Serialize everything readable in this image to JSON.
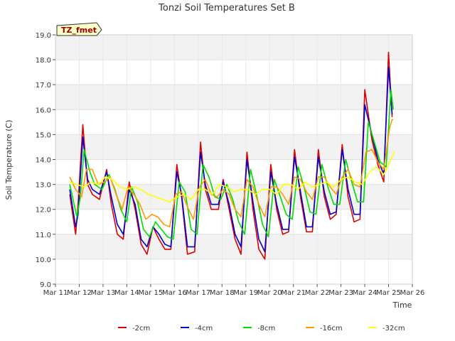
{
  "chart_data": {
    "type": "line",
    "title": "Tonzi Soil Temperatures Set B",
    "xlabel": "Time",
    "ylabel": "Soil Temperature (C)",
    "annotation": "TZ_fmet",
    "xlim": [
      11,
      26
    ],
    "ylim": [
      9.0,
      19.0
    ],
    "x_ticks": [
      11,
      12,
      13,
      14,
      15,
      16,
      17,
      18,
      19,
      20,
      21,
      22,
      23,
      24,
      25,
      26
    ],
    "x_tick_labels": [
      "Mar 11",
      "Mar 12",
      "Mar 13",
      "Mar 14",
      "Mar 15",
      "Mar 16",
      "Mar 17",
      "Mar 18",
      "Mar 19",
      "Mar 20",
      "Mar 21",
      "Mar 22",
      "Mar 23",
      "Mar 24",
      "Mar 25",
      "Mar 26"
    ],
    "y_ticks": [
      9,
      10,
      11,
      12,
      13,
      14,
      15,
      16,
      17,
      18,
      19
    ],
    "y_tick_labels": [
      "9.0",
      "10.0",
      "11.0",
      "12.0",
      "13.0",
      "14.0",
      "15.0",
      "16.0",
      "17.0",
      "18.0",
      "19.0"
    ],
    "grid": true,
    "legend_position": "bottom",
    "series": [
      {
        "name": "-2cm",
        "color": "#dd0000",
        "x": [
          11.6,
          11.85,
          11.95,
          12.15,
          12.35,
          12.55,
          12.85,
          13.15,
          13.35,
          13.6,
          13.85,
          14.1,
          14.35,
          14.6,
          14.85,
          15.1,
          15.35,
          15.6,
          15.85,
          16.1,
          16.3,
          16.55,
          16.85,
          17.1,
          17.3,
          17.55,
          17.85,
          18.05,
          18.3,
          18.55,
          18.8,
          19.05,
          19.3,
          19.55,
          19.8,
          20.05,
          20.3,
          20.55,
          20.8,
          21.05,
          21.3,
          21.55,
          21.8,
          22.05,
          22.3,
          22.55,
          22.8,
          23.05,
          23.3,
          23.55,
          23.8,
          24.0,
          24.3,
          24.55,
          24.8,
          25.0,
          25.15
        ],
        "y": [
          12.6,
          11.0,
          12.2,
          15.4,
          13.0,
          12.6,
          12.4,
          13.6,
          12.2,
          11.0,
          10.8,
          13.1,
          12.0,
          10.6,
          10.2,
          11.3,
          10.8,
          10.4,
          10.4,
          13.8,
          12.5,
          10.2,
          10.3,
          14.7,
          12.8,
          12.0,
          12.0,
          13.2,
          12.0,
          10.8,
          10.2,
          14.3,
          12.0,
          10.4,
          10.0,
          13.8,
          12.0,
          11.0,
          11.1,
          14.4,
          12.5,
          11.1,
          11.1,
          14.4,
          12.5,
          11.6,
          11.8,
          14.6,
          12.5,
          11.5,
          11.6,
          16.8,
          14.8,
          13.8,
          13.1,
          18.3,
          15.7
        ]
      },
      {
        "name": "-4cm",
        "color": "#0000cc",
        "x": [
          11.6,
          11.85,
          11.95,
          12.15,
          12.35,
          12.55,
          12.85,
          13.15,
          13.35,
          13.6,
          13.85,
          14.1,
          14.35,
          14.6,
          14.85,
          15.1,
          15.35,
          15.6,
          15.85,
          16.1,
          16.3,
          16.55,
          16.85,
          17.1,
          17.3,
          17.55,
          17.85,
          18.05,
          18.3,
          18.55,
          18.8,
          19.05,
          19.3,
          19.55,
          19.8,
          20.05,
          20.3,
          20.55,
          20.8,
          21.05,
          21.3,
          21.55,
          21.8,
          22.05,
          22.3,
          22.55,
          22.8,
          23.05,
          23.3,
          23.55,
          23.8,
          24.0,
          24.3,
          24.55,
          24.8,
          25.0,
          25.15
        ],
        "y": [
          12.8,
          11.3,
          11.8,
          14.9,
          13.2,
          12.8,
          12.6,
          13.5,
          12.5,
          11.4,
          11.0,
          12.8,
          12.2,
          10.8,
          10.5,
          11.3,
          11.0,
          10.6,
          10.5,
          13.5,
          12.6,
          10.5,
          10.5,
          14.3,
          13.0,
          12.2,
          12.2,
          13.1,
          12.2,
          11.0,
          10.5,
          14.0,
          12.3,
          10.8,
          10.3,
          13.5,
          12.2,
          11.2,
          11.2,
          14.1,
          12.7,
          11.3,
          11.3,
          14.1,
          12.7,
          11.8,
          11.9,
          14.4,
          12.8,
          11.8,
          11.8,
          16.2,
          15.0,
          14.0,
          13.4,
          17.7,
          15.8
        ]
      },
      {
        "name": "-8cm",
        "color": "#00dd00",
        "x": [
          11.6,
          11.9,
          12.05,
          12.2,
          12.45,
          12.65,
          12.95,
          13.25,
          13.5,
          13.75,
          14.0,
          14.2,
          14.45,
          14.7,
          14.95,
          15.2,
          15.45,
          15.7,
          15.95,
          16.2,
          16.45,
          16.7,
          16.95,
          17.2,
          17.45,
          17.7,
          17.95,
          18.2,
          18.45,
          18.7,
          18.95,
          19.2,
          19.45,
          19.7,
          19.95,
          20.2,
          20.45,
          20.7,
          20.95,
          21.2,
          21.45,
          21.7,
          21.95,
          22.2,
          22.45,
          22.7,
          22.95,
          23.2,
          23.45,
          23.7,
          23.95,
          24.15,
          24.4,
          24.65,
          24.9,
          25.1,
          25.2
        ],
        "y": [
          13.0,
          11.7,
          12.5,
          14.4,
          13.5,
          13.0,
          12.8,
          13.4,
          12.8,
          12.0,
          11.5,
          12.9,
          12.3,
          11.2,
          10.9,
          11.5,
          11.2,
          10.9,
          10.8,
          13.1,
          12.7,
          11.2,
          11.0,
          13.8,
          13.3,
          12.5,
          12.4,
          13.0,
          12.4,
          11.5,
          11.0,
          13.6,
          12.6,
          11.4,
          10.9,
          13.2,
          12.5,
          11.8,
          11.6,
          13.7,
          12.9,
          11.9,
          11.8,
          13.8,
          12.9,
          12.2,
          12.2,
          14.0,
          13.1,
          12.3,
          12.3,
          15.5,
          14.7,
          13.9,
          13.7,
          16.8,
          16.0
        ]
      },
      {
        "name": "-16cm",
        "color": "#ff9900",
        "x": [
          11.6,
          11.85,
          12.1,
          12.3,
          12.55,
          12.8,
          13.05,
          13.3,
          13.55,
          13.8,
          14.05,
          14.3,
          14.55,
          14.8,
          15.05,
          15.3,
          15.55,
          15.8,
          16.05,
          16.3,
          16.55,
          16.8,
          17.05,
          17.3,
          17.55,
          17.8,
          18.05,
          18.3,
          18.55,
          18.8,
          19.05,
          19.3,
          19.55,
          19.8,
          20.05,
          20.3,
          20.55,
          20.8,
          21.05,
          21.3,
          21.55,
          21.8,
          22.05,
          22.3,
          22.55,
          22.8,
          23.05,
          23.3,
          23.55,
          23.8,
          24.05,
          24.3,
          24.55,
          24.8,
          25.05,
          25.15,
          25.2
        ],
        "y": [
          13.3,
          12.8,
          12.5,
          13.6,
          13.6,
          13.0,
          13.1,
          13.3,
          12.6,
          12.0,
          12.9,
          12.6,
          12.2,
          11.6,
          11.8,
          11.7,
          11.4,
          11.3,
          12.6,
          12.7,
          12.1,
          11.6,
          12.9,
          13.2,
          12.6,
          12.5,
          12.8,
          12.6,
          12.0,
          11.7,
          13.2,
          12.9,
          12.2,
          11.7,
          12.9,
          12.9,
          12.6,
          12.2,
          13.3,
          13.2,
          12.7,
          12.4,
          13.3,
          13.3,
          12.9,
          12.6,
          13.3,
          13.6,
          13.0,
          12.9,
          14.3,
          14.4,
          13.9,
          13.6,
          15.3,
          15.6,
          15.6
        ]
      },
      {
        "name": "-32cm",
        "color": "#ffff00",
        "x": [
          11.6,
          11.9,
          12.2,
          12.5,
          12.8,
          13.1,
          13.4,
          13.7,
          14.0,
          14.3,
          14.6,
          14.9,
          15.2,
          15.5,
          15.8,
          16.1,
          16.4,
          16.7,
          17.0,
          17.3,
          17.6,
          17.9,
          18.2,
          18.5,
          18.8,
          19.1,
          19.4,
          19.7,
          20.0,
          20.3,
          20.6,
          20.9,
          21.2,
          21.5,
          21.8,
          22.1,
          22.4,
          22.7,
          23.0,
          23.3,
          23.6,
          23.9,
          24.2,
          24.5,
          24.8,
          25.0,
          25.25
        ],
        "y": [
          13.1,
          13.0,
          12.9,
          13.1,
          13.0,
          13.3,
          13.2,
          12.9,
          12.8,
          12.9,
          12.8,
          12.6,
          12.5,
          12.4,
          12.3,
          12.5,
          12.6,
          12.4,
          12.8,
          12.8,
          12.6,
          13.0,
          12.9,
          12.7,
          12.8,
          12.8,
          12.6,
          12.8,
          12.8,
          12.6,
          13.0,
          13.0,
          12.8,
          13.1,
          12.9,
          13.0,
          13.1,
          12.9,
          13.2,
          13.3,
          13.1,
          13.0,
          13.5,
          13.7,
          13.4,
          13.8,
          14.3
        ]
      }
    ]
  }
}
